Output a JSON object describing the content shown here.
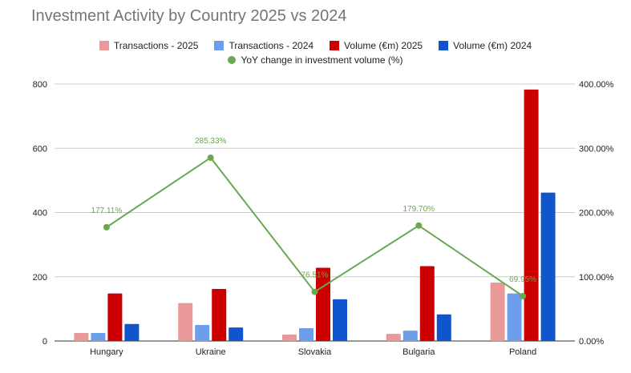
{
  "chart_data": {
    "type": "bar",
    "title": "Investment Activity by Country 2025 vs 2024",
    "categories": [
      "Hungary",
      "Ukraine",
      "Slovakia",
      "Bulgaria",
      "Poland"
    ],
    "series": [
      {
        "name": "Transactions - 2025",
        "values": [
          25,
          118,
          20,
          22,
          182
        ],
        "color": "#ea9999",
        "axis": "left"
      },
      {
        "name": "Transactions - 2024",
        "values": [
          25,
          50,
          40,
          32,
          148
        ],
        "color": "#6d9eeb",
        "axis": "left"
      },
      {
        "name": "Volume (€m) 2025",
        "values": [
          148,
          162,
          228,
          233,
          783
        ],
        "color": "#cc0000",
        "axis": "left"
      },
      {
        "name": "Volume (€m) 2024",
        "values": [
          53,
          42,
          130,
          83,
          462
        ],
        "color": "#1155cc",
        "axis": "left"
      }
    ],
    "line_series": {
      "name": "YoY change in investment volume (%)",
      "values": [
        177.11,
        285.33,
        76.51,
        179.7,
        69.95
      ],
      "labels": [
        "177.11%",
        "285.33%",
        "76.51%",
        "179.70%",
        "69.95%"
      ],
      "color": "#6aa84f",
      "axis": "right"
    },
    "ylim": [
      0,
      800
    ],
    "yticks": [
      "0",
      "200",
      "400",
      "600",
      "800"
    ],
    "y2lim": [
      0,
      400
    ],
    "y2ticks": [
      "0.00%",
      "100.00%",
      "200.00%",
      "300.00%",
      "400.00%"
    ],
    "legend_position": "top",
    "grid": true,
    "text_color": "#222222",
    "title_color": "#757575",
    "grid_color": "#cccccc"
  }
}
